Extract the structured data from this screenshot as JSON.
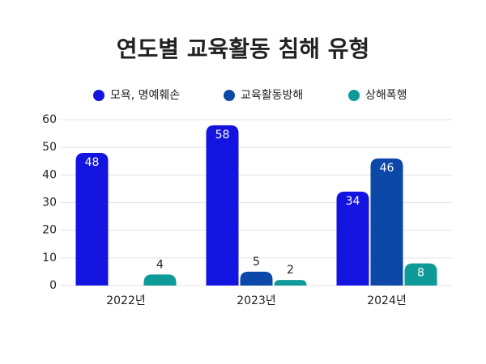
{
  "chart_data": {
    "type": "bar",
    "title": "연도별 교육활동 침해 유형",
    "categories": [
      "2022년",
      "2023년",
      "2024년"
    ],
    "series": [
      {
        "name": "모욕, 명예훼손",
        "color": "#1414e0",
        "values": [
          48,
          58,
          34
        ]
      },
      {
        "name": "교육활동방해",
        "color": "#0b48a8",
        "values": [
          null,
          5,
          46
        ]
      },
      {
        "name": "상해폭행",
        "color": "#0e9a97",
        "values": [
          4,
          2,
          8
        ]
      }
    ],
    "ylim": [
      0,
      60
    ],
    "yticks": [
      0,
      10,
      20,
      30,
      40,
      50,
      60
    ],
    "grid": true,
    "legend": "top"
  }
}
